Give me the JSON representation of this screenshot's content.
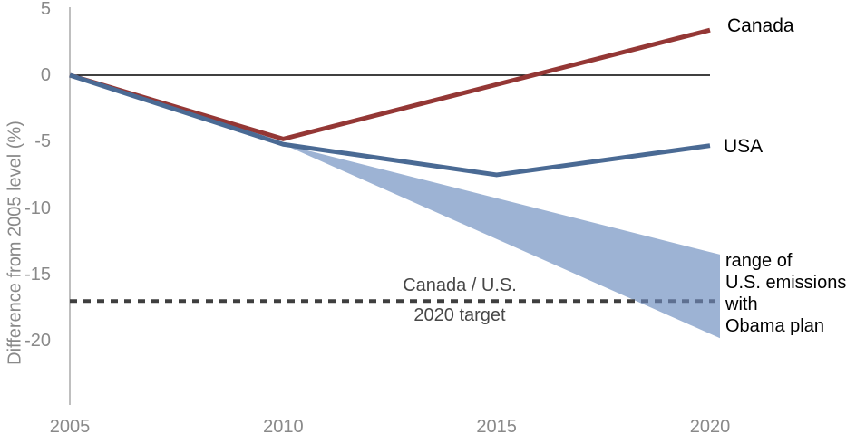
{
  "chart": {
    "y_axis_title": "Difference from 2005 level (%)",
    "y_tick_labels": [
      "5",
      "0",
      "-5",
      "-10",
      "-15",
      "-20"
    ],
    "x_tick_labels": [
      "2005",
      "2010",
      "2015",
      "2020"
    ],
    "labels": {
      "canada": "Canada",
      "usa": "USA",
      "range": "range of\nU.S. emissions\nwith\nObama plan",
      "target_line1": "Canada / U.S.",
      "target_line2": "2020 target"
    },
    "colors": {
      "axis": "#BFBFBF",
      "tick_text": "#898989",
      "zero_line": "#000000",
      "target_line": "#3F3F3F",
      "target_line_in_band": "#5E7091",
      "target_text": "#474747",
      "band": "#9DB3D4",
      "canada": "#943735",
      "usa": "#4A6A94",
      "annotation_text": "#000000"
    }
  },
  "chart_data": {
    "type": "line",
    "title": "",
    "xlabel": "",
    "ylabel": "Difference from 2005 level (%)",
    "xlim": [
      2005,
      2020
    ],
    "ylim": [
      -22.7,
      5.5
    ],
    "grid": false,
    "legend": "inline-labels-right",
    "x_ticks": [
      2005,
      2010,
      2015,
      2020
    ],
    "y_ticks": [
      5,
      0,
      -5,
      -10,
      -15,
      -20
    ],
    "series": [
      {
        "name": "Canada",
        "color": "#943735",
        "x": [
          2005,
          2010,
          2020
        ],
        "values": [
          0,
          -4.8,
          3.4
        ]
      },
      {
        "name": "USA",
        "color": "#4A6A94",
        "x": [
          2005,
          2010,
          2015,
          2020
        ],
        "values": [
          0,
          -5.2,
          -7.5,
          -5.3
        ]
      }
    ],
    "band": {
      "name": "range of U.S. emissions with Obama plan",
      "color": "#9DB3D4",
      "x": [
        2010,
        2020
      ],
      "upper": [
        -5.2,
        -13.5
      ],
      "lower": [
        -5.2,
        -19.8
      ]
    },
    "reference_lines": [
      {
        "label": "zero baseline",
        "value": 0,
        "style": "solid"
      },
      {
        "label": "Canada / U.S. 2020 target",
        "value": -17,
        "style": "dotted"
      }
    ]
  }
}
